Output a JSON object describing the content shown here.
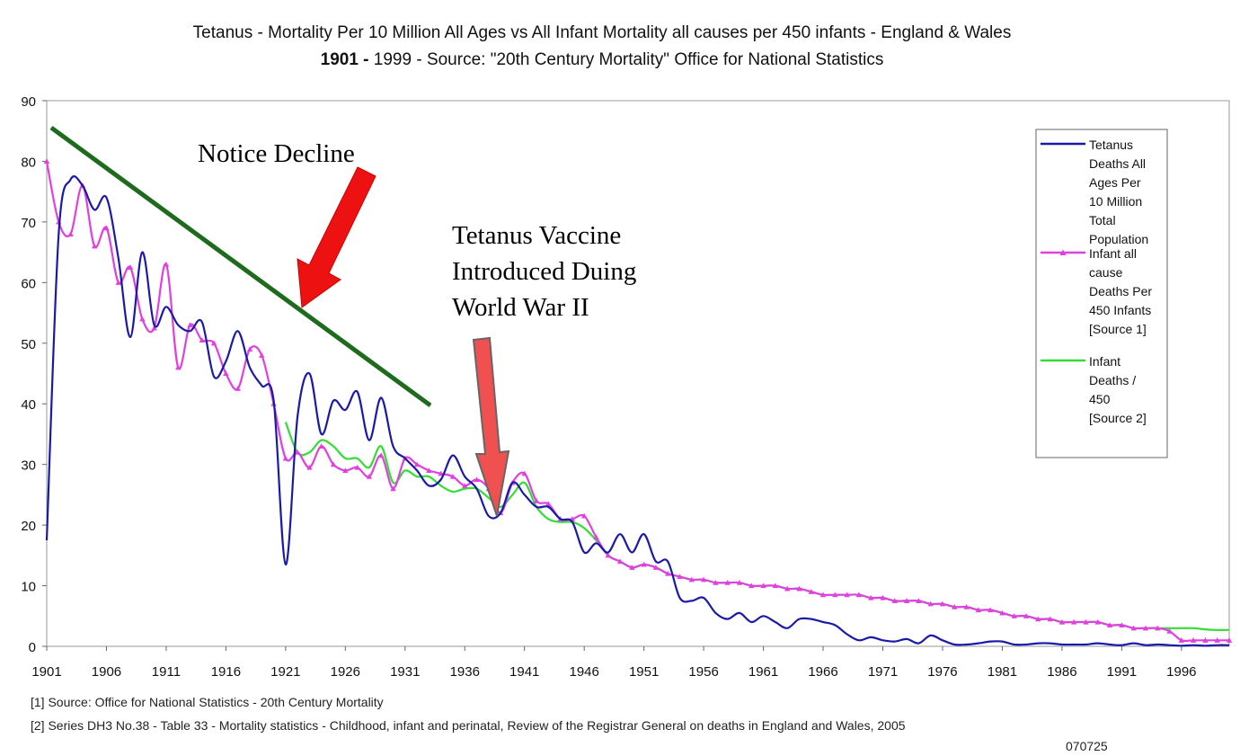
{
  "title_line1": "Tetanus - Mortality Per 10 Million All Ages vs All Infant Mortality all causes per 450 infants - England & Wales",
  "title_line2_bold": "1901 -",
  "title_line2_rest": " 1999 - Source: \"20th Century Mortality\" Office for National Statistics",
  "annotations": {
    "decline": "Notice Decline",
    "vaccine_lines": [
      "Tetanus Vaccine",
      "Introduced Duing",
      "World War II"
    ]
  },
  "footnotes": [
    "[1] Source: Office for National Statistics - 20th Century Mortality",
    "[2] Series DH3 No.38 - Table 33 - Mortality statistics - Childhood, infant and perinatal, Review of the Registrar General on deaths in England and Wales, 2005"
  ],
  "code": "070725",
  "colors": {
    "tetanus": "#1a1aa8",
    "infant1": "#e040e0",
    "infant2": "#33dd33",
    "trend": "#1e6b1e",
    "arrow": "#ee1111",
    "arrow2": "#f05050"
  },
  "chart_data": {
    "type": "line",
    "xlim": [
      1901,
      2000
    ],
    "ylim": [
      0,
      90
    ],
    "grid": false,
    "legend_position": "right",
    "x_ticks": [
      "1901",
      "1906",
      "1911",
      "1916",
      "1921",
      "1926",
      "1931",
      "1936",
      "1941",
      "1946",
      "1951",
      "1956",
      "1961",
      "1966",
      "1971",
      "1976",
      "1981",
      "1986",
      "1991",
      "1996"
    ],
    "y_ticks": [
      "0",
      "10",
      "20",
      "30",
      "40",
      "50",
      "60",
      "70",
      "80",
      "90"
    ],
    "series": [
      {
        "name": "Tetanus Deaths All Ages Per 10 Million Total Population",
        "legend_lines": [
          "Tetanus",
          "Deaths All",
          "Ages Per",
          "10 Million",
          "Total",
          "Population"
        ],
        "color_key": "tetanus",
        "x": [
          1901,
          1902,
          1903,
          1904,
          1905,
          1906,
          1907,
          1908,
          1909,
          1910,
          1911,
          1912,
          1913,
          1914,
          1915,
          1916,
          1917,
          1918,
          1919,
          1920,
          1921,
          1922,
          1923,
          1924,
          1925,
          1926,
          1927,
          1928,
          1929,
          1930,
          1931,
          1932,
          1933,
          1934,
          1935,
          1936,
          1937,
          1938,
          1939,
          1940,
          1941,
          1942,
          1943,
          1944,
          1945,
          1946,
          1947,
          1948,
          1949,
          1950,
          1951,
          1952,
          1953,
          1954,
          1955,
          1956,
          1957,
          1958,
          1959,
          1960,
          1961,
          1962,
          1963,
          1964,
          1965,
          1966,
          1967,
          1968,
          1969,
          1970,
          1971,
          1972,
          1973,
          1974,
          1975,
          1976,
          1977,
          1978,
          1979,
          1980,
          1981,
          1982,
          1983,
          1984,
          1985,
          1986,
          1987,
          1988,
          1989,
          1990,
          1991,
          1992,
          1993,
          1994,
          1995,
          1996,
          1997,
          1998,
          1999,
          2000
        ],
        "y": [
          17.5,
          68,
          77,
          76,
          72,
          74,
          64,
          51,
          65,
          53,
          56,
          53,
          52,
          53.5,
          44.5,
          47,
          52,
          46,
          43,
          40.5,
          13.5,
          38,
          45,
          35,
          40.5,
          39,
          42,
          34,
          41,
          33,
          31,
          29,
          26.5,
          27.5,
          31.5,
          28,
          26,
          21.5,
          22,
          27,
          25,
          23,
          23,
          21,
          20.5,
          15.5,
          17,
          15.5,
          18.5,
          15.5,
          18.5,
          14,
          14,
          8,
          7.5,
          8,
          5.5,
          4.5,
          5.5,
          4,
          5,
          4,
          3,
          4.5,
          4.5,
          4,
          3.5,
          2,
          1,
          1.5,
          1,
          0.8,
          1.2,
          0.5,
          1.8,
          1,
          0.3,
          0.3,
          0.5,
          0.8,
          0.8,
          0.3,
          0.3,
          0.5,
          0.5,
          0.3,
          0.3,
          0.3,
          0.5,
          0.3,
          0.2,
          0.5,
          0.2,
          0.3,
          0.2,
          0.1,
          0.2,
          0.1,
          0.2,
          0.2
        ]
      },
      {
        "name": "Infant all cause Deaths Per 450 Infants [Source 1]",
        "legend_lines": [
          "Infant all",
          "cause",
          "Deaths Per",
          "450 Infants",
          "[Source 1]"
        ],
        "color_key": "infant1",
        "x": [
          1901,
          1902,
          1903,
          1904,
          1905,
          1906,
          1907,
          1908,
          1909,
          1910,
          1911,
          1912,
          1913,
          1914,
          1915,
          1916,
          1917,
          1918,
          1919,
          1920,
          1921,
          1922,
          1923,
          1924,
          1925,
          1926,
          1927,
          1928,
          1929,
          1930,
          1931,
          1932,
          1933,
          1934,
          1935,
          1936,
          1937,
          1938,
          1939,
          1940,
          1941,
          1942,
          1943,
          1944,
          1945,
          1946,
          1947,
          1948,
          1949,
          1950,
          1951,
          1952,
          1953,
          1954,
          1955,
          1956,
          1957,
          1958,
          1959,
          1960,
          1961,
          1962,
          1963,
          1964,
          1965,
          1966,
          1967,
          1968,
          1969,
          1970,
          1971,
          1972,
          1973,
          1974,
          1975,
          1976,
          1977,
          1978,
          1979,
          1980,
          1981,
          1982,
          1983,
          1984,
          1985,
          1986,
          1987,
          1988,
          1989,
          1990,
          1991,
          1992,
          1993,
          1994,
          1995,
          1996,
          1997,
          1998,
          1999,
          2000
        ],
        "y": [
          80,
          70,
          68,
          76,
          66,
          69,
          60,
          62.5,
          54,
          52.5,
          63,
          46,
          53,
          50.5,
          50,
          45,
          42.5,
          49,
          48,
          40,
          31,
          32,
          29.5,
          33,
          30,
          29,
          29.5,
          28,
          31.5,
          26,
          31,
          30,
          29,
          28.5,
          28,
          26.5,
          27.5,
          26,
          22,
          27,
          28.5,
          24,
          23.5,
          21,
          21,
          21.5,
          18,
          15,
          14,
          13,
          13.5,
          13,
          12,
          11.5,
          11,
          11,
          10.5,
          10.5,
          10.5,
          10,
          10,
          10,
          9.5,
          9.5,
          9,
          8.5,
          8.5,
          8.5,
          8.5,
          8,
          8,
          7.5,
          7.5,
          7.5,
          7,
          7,
          6.5,
          6.5,
          6,
          6,
          5.5,
          5,
          5,
          4.5,
          4.5,
          4,
          4,
          4,
          4,
          3.5,
          3.5,
          3,
          3,
          3,
          2.5,
          1,
          1,
          1,
          1,
          1
        ]
      },
      {
        "name": "Infant Deaths / 450 [Source 2]",
        "legend_lines": [
          "Infant",
          "Deaths /",
          "450",
          "[Source 2]"
        ],
        "color_key": "infant2",
        "x": [
          1921,
          1922,
          1923,
          1924,
          1925,
          1926,
          1927,
          1928,
          1929,
          1930,
          1931,
          1932,
          1933,
          1934,
          1935,
          1936,
          1937,
          1938,
          1939,
          1940,
          1941,
          1942,
          1943,
          1944,
          1945,
          1946,
          1947,
          1948,
          1949,
          1950,
          1951,
          1952,
          1953,
          1954,
          1955,
          1956,
          1957,
          1958,
          1959,
          1960,
          1961,
          1962,
          1963,
          1964,
          1965,
          1966,
          1967,
          1968,
          1969,
          1970,
          1971,
          1972,
          1973,
          1974,
          1975,
          1976,
          1977,
          1978,
          1979,
          1980,
          1981,
          1982,
          1983,
          1984,
          1985,
          1986,
          1987,
          1988,
          1989,
          1990,
          1991,
          1992,
          1993,
          1994,
          1995,
          1996,
          1997,
          1998,
          1999,
          2000
        ],
        "y": [
          37,
          32,
          32,
          34,
          33,
          31,
          31,
          29.5,
          33,
          27,
          29,
          28,
          28,
          26.5,
          25.5,
          26,
          26,
          24.5,
          23,
          25,
          27,
          23,
          21,
          20.5,
          20.5,
          19.5,
          17.5,
          15,
          14,
          13,
          13.5,
          13,
          12,
          11.5,
          11,
          11,
          10.5,
          10.5,
          10.5,
          10,
          10,
          10,
          9.5,
          9.5,
          9,
          8.5,
          8.5,
          8.5,
          8.5,
          8,
          8,
          7.5,
          7.5,
          7.5,
          7,
          7,
          6.5,
          6.5,
          6,
          6,
          5.5,
          5,
          5,
          4.5,
          4.5,
          4,
          4,
          4,
          4,
          3.5,
          3.5,
          3,
          3,
          3,
          3,
          3,
          3,
          2.8,
          2.7,
          2.7
        ]
      }
    ]
  }
}
